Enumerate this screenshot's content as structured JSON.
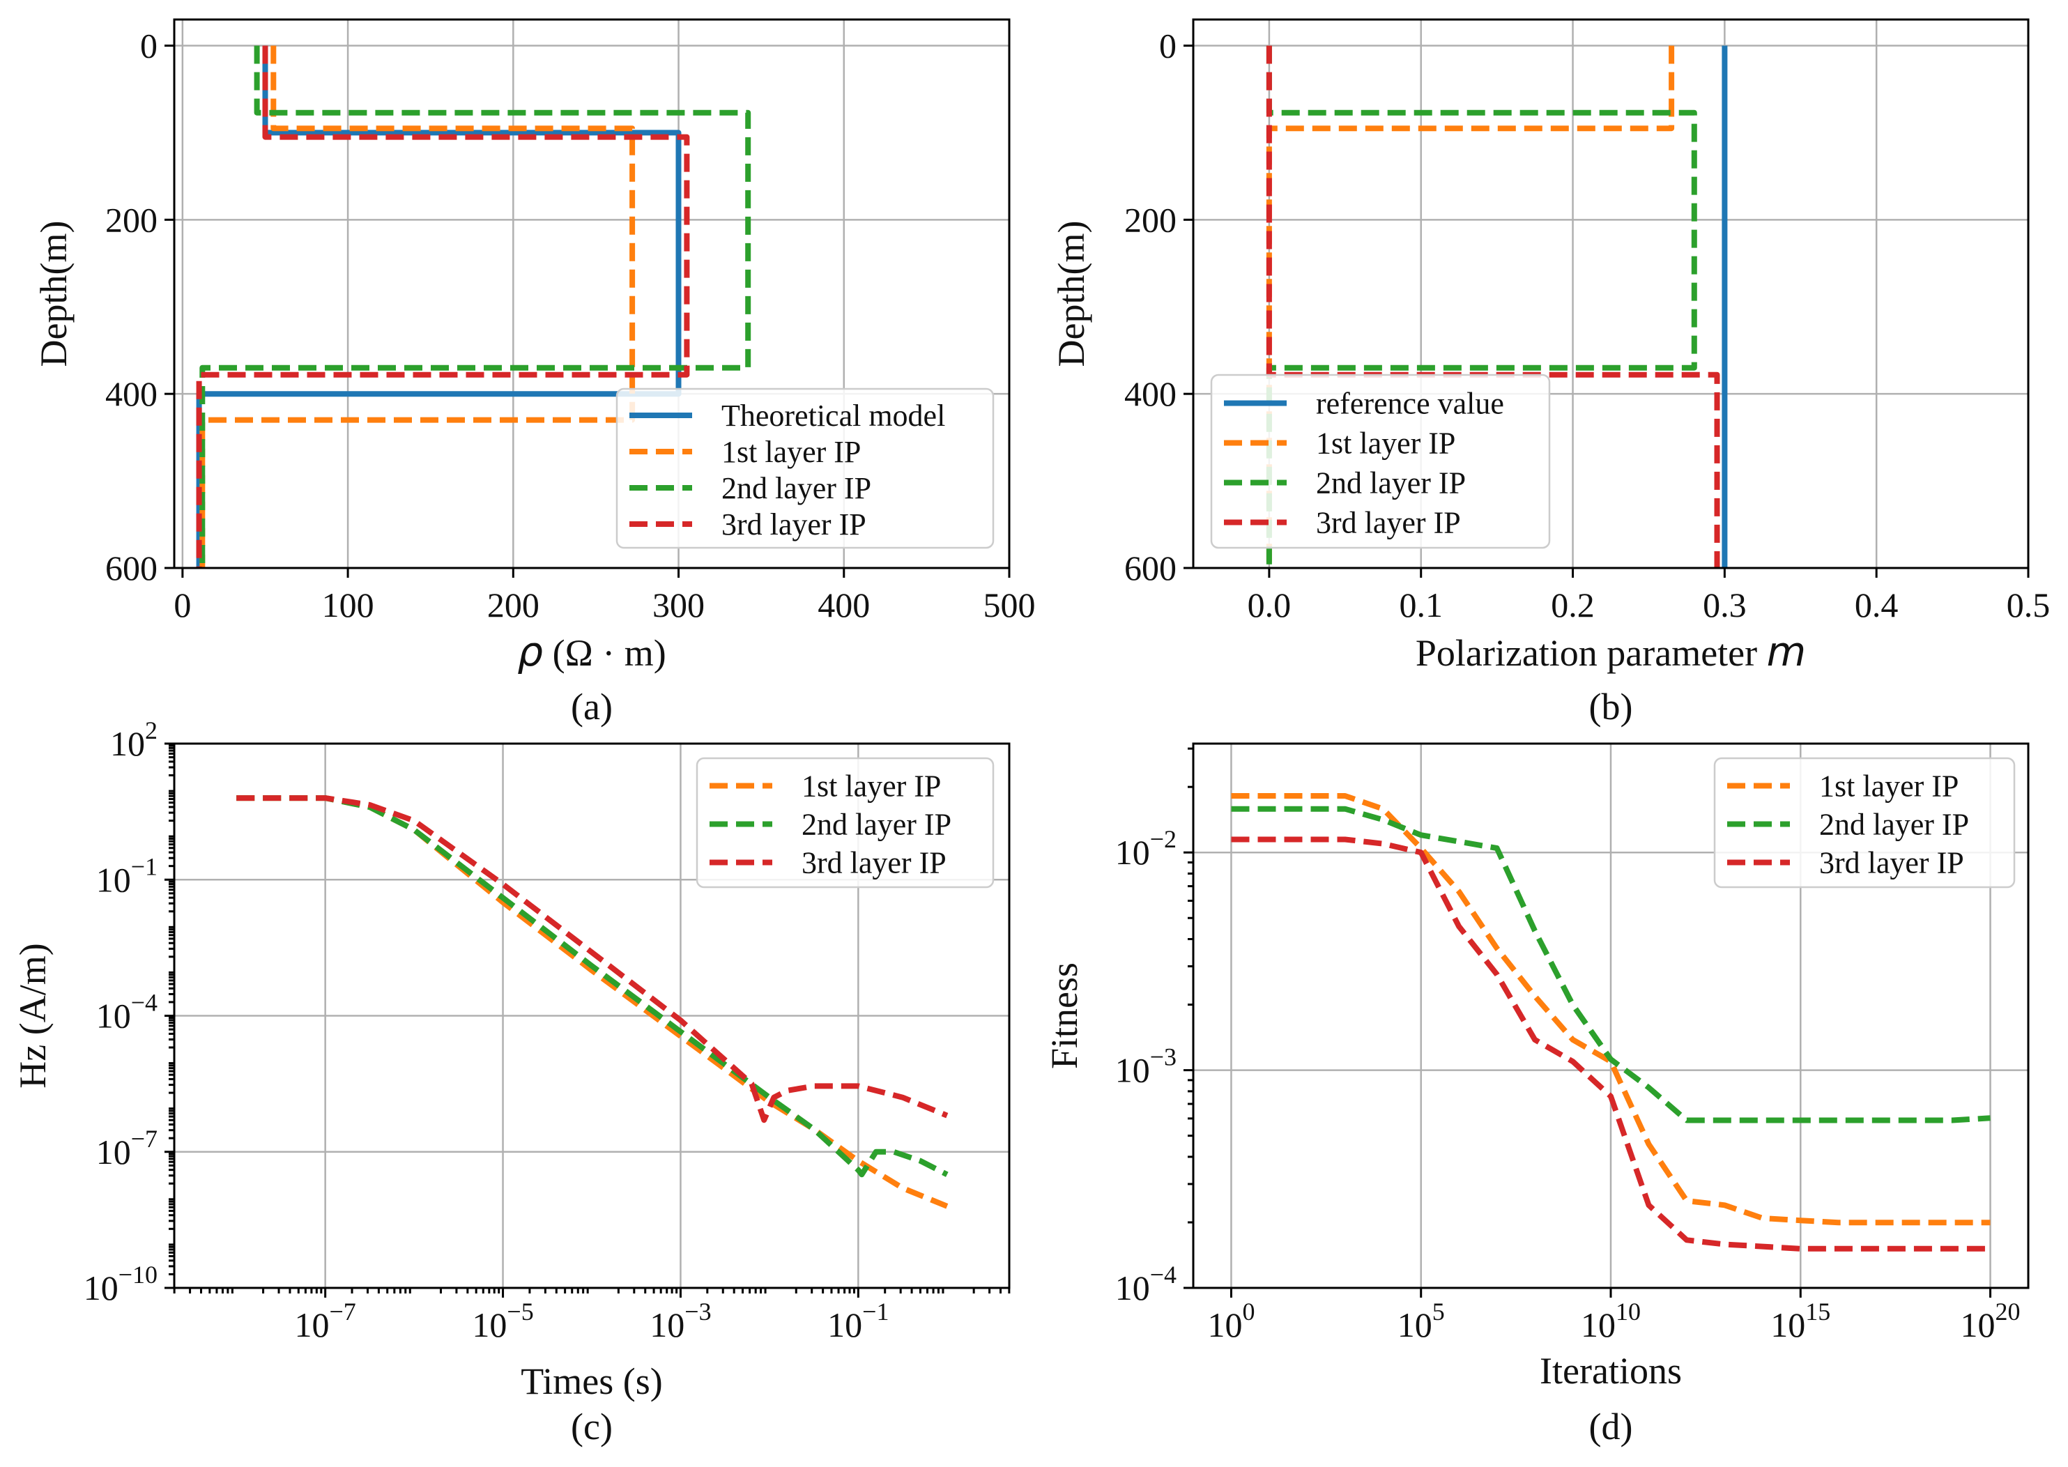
{
  "colors": {
    "blue": "#1f77b4",
    "orange": "#ff7f0e",
    "green": "#2ca02c",
    "red": "#d62728"
  },
  "chart_data": [
    {
      "type": "line",
      "panel": "(a)",
      "title": "",
      "xlabel_math": "ρ",
      "xlabel_rest": " (Ω · m)",
      "ylabel": "Depth(m)",
      "xlim": [
        -5,
        500
      ],
      "ylim": [
        600,
        -30
      ],
      "y_inverted": true,
      "x_scale": "linear",
      "y_scale": "linear",
      "xticks": [
        0,
        100,
        200,
        300,
        400,
        500
      ],
      "xtick_labels": [
        "0",
        "100",
        "200",
        "300",
        "400",
        "500"
      ],
      "yticks": [
        0,
        200,
        400,
        600
      ],
      "ytick_labels": [
        "0",
        "200",
        "400",
        "600"
      ],
      "grid": true,
      "legend": "lower-right",
      "series": [
        {
          "name": "Theoretical model",
          "color": "blue",
          "dash": false,
          "x": [
            50,
            50,
            300,
            300,
            10,
            10
          ],
          "y": [
            0,
            100,
            100,
            400,
            400,
            600
          ]
        },
        {
          "name": "1st layer IP",
          "color": "orange",
          "dash": true,
          "x": [
            55,
            55,
            272,
            272,
            12,
            12
          ],
          "y": [
            0,
            95,
            95,
            430,
            430,
            600
          ]
        },
        {
          "name": "2nd layer IP",
          "color": "green",
          "dash": true,
          "x": [
            45,
            45,
            342,
            342,
            12,
            12
          ],
          "y": [
            0,
            77,
            77,
            370,
            370,
            600
          ]
        },
        {
          "name": "3rd layer IP",
          "color": "red",
          "dash": true,
          "x": [
            50,
            50,
            305,
            305,
            10,
            10
          ],
          "y": [
            0,
            105,
            105,
            378,
            378,
            600
          ]
        }
      ]
    },
    {
      "type": "line",
      "panel": "(b)",
      "title": "",
      "xlabel_text": "Polarization parameter ",
      "xlabel_math": "m",
      "ylabel": "Depth(m)",
      "xlim": [
        -0.05,
        0.5
      ],
      "ylim": [
        600,
        -30
      ],
      "y_inverted": true,
      "x_scale": "linear",
      "y_scale": "linear",
      "xticks": [
        0.0,
        0.1,
        0.2,
        0.3,
        0.4,
        0.5
      ],
      "xtick_labels": [
        "0.0",
        "0.1",
        "0.2",
        "0.3",
        "0.4",
        "0.5"
      ],
      "yticks": [
        0,
        200,
        400,
        600
      ],
      "ytick_labels": [
        "0",
        "200",
        "400",
        "600"
      ],
      "grid": true,
      "legend": "lower-left",
      "series": [
        {
          "name": "reference value",
          "color": "blue",
          "dash": false,
          "x": [
            0.3,
            0.3
          ],
          "y": [
            0,
            600
          ]
        },
        {
          "name": "1st layer IP",
          "color": "orange",
          "dash": true,
          "x": [
            0.265,
            0.265,
            0.0,
            0.0
          ],
          "y": [
            0,
            95,
            95,
            600
          ]
        },
        {
          "name": "2nd layer IP",
          "color": "green",
          "dash": true,
          "x": [
            0.0,
            0.0,
            0.28,
            0.28,
            0.0,
            0.0
          ],
          "y": [
            0,
            77,
            77,
            370,
            370,
            600
          ]
        },
        {
          "name": "3rd layer IP",
          "color": "red",
          "dash": true,
          "x": [
            0.0,
            0.0,
            0.295,
            0.295
          ],
          "y": [
            0,
            378,
            378,
            600
          ]
        }
      ]
    },
    {
      "type": "line",
      "panel": "(c)",
      "title": "",
      "xlabel": "Times (s)",
      "ylabel": "Hz (A/m)",
      "xlim": [
        -8.7,
        0.7
      ],
      "ylim": [
        -10,
        2
      ],
      "x_scale": "log",
      "y_scale": "log",
      "xticks": [
        -7,
        -5,
        -3,
        -1
      ],
      "xtick_labels": [
        "-7",
        "-5",
        "-3",
        "-1"
      ],
      "yticks": [
        2,
        -1,
        -4,
        -7,
        -10
      ],
      "ytick_labels": [
        "2",
        "-1",
        "-4",
        "-7",
        "-10"
      ],
      "tick_base": "10",
      "grid": true,
      "legend": "upper-right",
      "series": [
        {
          "name": "1st layer IP",
          "color": "orange",
          "dash": true,
          "x": [
            -8,
            -7,
            -6.5,
            -6,
            -5,
            -4,
            -3,
            -2,
            -1.5,
            -1,
            -0.5,
            0
          ],
          "y": [
            0.8,
            0.8,
            0.6,
            0.1,
            -1.5,
            -3.0,
            -4.45,
            -5.9,
            -6.5,
            -7.2,
            -7.8,
            -8.2
          ]
        },
        {
          "name": "2nd layer IP",
          "color": "green",
          "dash": true,
          "x": [
            -8,
            -7,
            -6.5,
            -6,
            -5,
            -4,
            -3,
            -2,
            -1.5,
            -1,
            -0.96,
            -0.8,
            -0.6,
            -0.3,
            0
          ],
          "y": [
            0.8,
            0.8,
            0.6,
            0.1,
            -1.4,
            -2.9,
            -4.35,
            -5.8,
            -6.5,
            -7.4,
            -7.5,
            -7.0,
            -7.0,
            -7.2,
            -7.5
          ]
        },
        {
          "name": "3rd layer IP",
          "color": "red",
          "dash": true,
          "x": [
            -8,
            -7,
            -6.5,
            -6,
            -5,
            -4,
            -3,
            -2.2,
            -2.06,
            -1.95,
            -1.8,
            -1.5,
            -1.0,
            -0.5,
            0
          ],
          "y": [
            0.8,
            0.8,
            0.65,
            0.3,
            -1.1,
            -2.6,
            -4.1,
            -5.5,
            -6.3,
            -5.8,
            -5.65,
            -5.55,
            -5.55,
            -5.8,
            -6.2
          ]
        }
      ]
    },
    {
      "type": "line",
      "panel": "(d)",
      "title": "",
      "xlabel": "Iterations",
      "ylabel": "Fitness",
      "xlim": [
        -1,
        21
      ],
      "ylim": [
        -4,
        -1.5
      ],
      "x_scale": "linear",
      "y_scale": "log",
      "xticks": [
        0,
        5,
        10,
        15,
        20
      ],
      "xtick_labels": [
        "0",
        "5",
        "10",
        "15",
        "20"
      ],
      "yticks": [
        -2,
        -3,
        -4
      ],
      "ytick_labels": [
        "-2",
        "-3",
        "-4"
      ],
      "tick_base": "10",
      "grid": true,
      "legend": "upper-right",
      "series": [
        {
          "name": "1st layer IP",
          "color": "orange",
          "dash": true,
          "x": [
            0,
            1,
            2,
            3,
            4,
            5,
            6,
            7,
            8,
            9,
            10,
            11,
            12,
            13,
            14,
            15,
            16,
            17,
            18,
            19,
            20
          ],
          "y": [
            -1.74,
            -1.74,
            -1.74,
            -1.74,
            -1.8,
            -1.98,
            -2.18,
            -2.44,
            -2.66,
            -2.86,
            -2.96,
            -3.34,
            -3.6,
            -3.62,
            -3.68,
            -3.69,
            -3.7,
            -3.7,
            -3.7,
            -3.7,
            -3.7
          ]
        },
        {
          "name": "2nd layer IP",
          "color": "green",
          "dash": true,
          "x": [
            0,
            1,
            2,
            3,
            4,
            5,
            6,
            7,
            8,
            9,
            10,
            11,
            12,
            13,
            14,
            15,
            16,
            17,
            18,
            19,
            20
          ],
          "y": [
            -1.8,
            -1.8,
            -1.8,
            -1.8,
            -1.85,
            -1.92,
            -1.95,
            -1.98,
            -2.36,
            -2.7,
            -2.95,
            -3.08,
            -3.23,
            -3.23,
            -3.23,
            -3.23,
            -3.23,
            -3.23,
            -3.23,
            -3.23,
            -3.22
          ]
        },
        {
          "name": "3rd layer IP",
          "color": "red",
          "dash": true,
          "x": [
            0,
            1,
            2,
            3,
            4,
            5,
            6,
            7,
            8,
            9,
            10,
            11,
            12,
            13,
            14,
            15,
            16,
            17,
            18,
            19,
            20
          ],
          "y": [
            -1.94,
            -1.94,
            -1.94,
            -1.94,
            -1.96,
            -2.0,
            -2.34,
            -2.56,
            -2.86,
            -2.96,
            -3.12,
            -3.62,
            -3.78,
            -3.8,
            -3.81,
            -3.82,
            -3.82,
            -3.82,
            -3.82,
            -3.82,
            -3.82
          ]
        }
      ]
    }
  ]
}
